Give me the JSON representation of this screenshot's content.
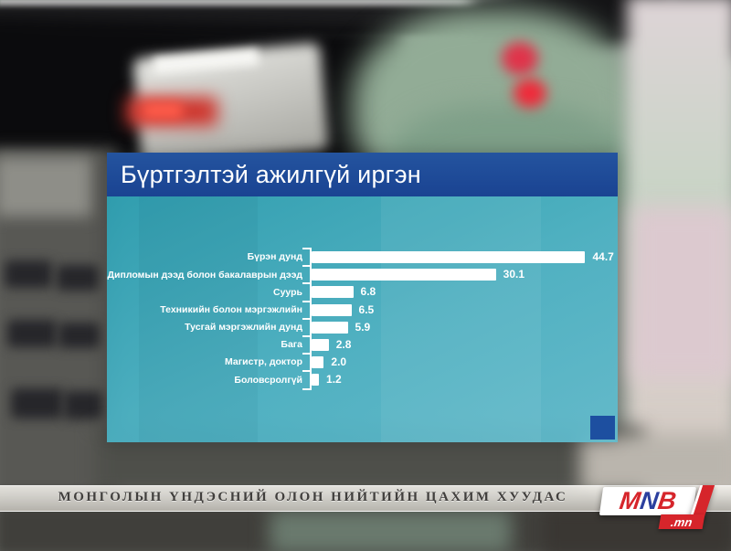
{
  "title_bar": {
    "text": "Бүртгэлтэй ажилгүй иргэн",
    "bg_color": "#1e4a99",
    "text_color": "#ffffff"
  },
  "chart_data": {
    "type": "bar",
    "orientation": "horizontal",
    "title": "Бүртгэлтэй ажилгүй иргэн",
    "categories": [
      "Бүрэн дунд",
      "Дипломын дээд болон бакалаврын дээд",
      "Суурь",
      "Техникийн болон мэргэжлийн",
      "Тусгай мэргэжлийн дунд",
      "Бага",
      "Магистр, доктор",
      "Боловсролгүй"
    ],
    "values": [
      44.7,
      30.1,
      6.8,
      6.5,
      5.9,
      2.8,
      2.0,
      1.2
    ],
    "value_labels": [
      "44.7",
      "30.1",
      "6.8",
      "6.5",
      "5.9",
      "2.8",
      "2.0",
      "1.2"
    ],
    "xlim": [
      0,
      47
    ],
    "grid": false,
    "legend": false,
    "bar_color": "#ffffff",
    "label_color": "#ffffff",
    "panel_bg_color": "#46abc0",
    "accent_square_color": "#1d4fa0"
  },
  "ticker": {
    "text": "МОНГОЛЫН ҮНДЭСНИЙ ОЛОН НИЙТИЙН ЦАХИМ ХУУДАС"
  },
  "logo": {
    "letters": [
      "M",
      "N",
      "B"
    ],
    "letter_colors": [
      "#d6252b",
      "#2b3f9e",
      "#d6252b"
    ],
    "suffix": ".mn",
    "suffix_bg_color": "#d6252b"
  }
}
